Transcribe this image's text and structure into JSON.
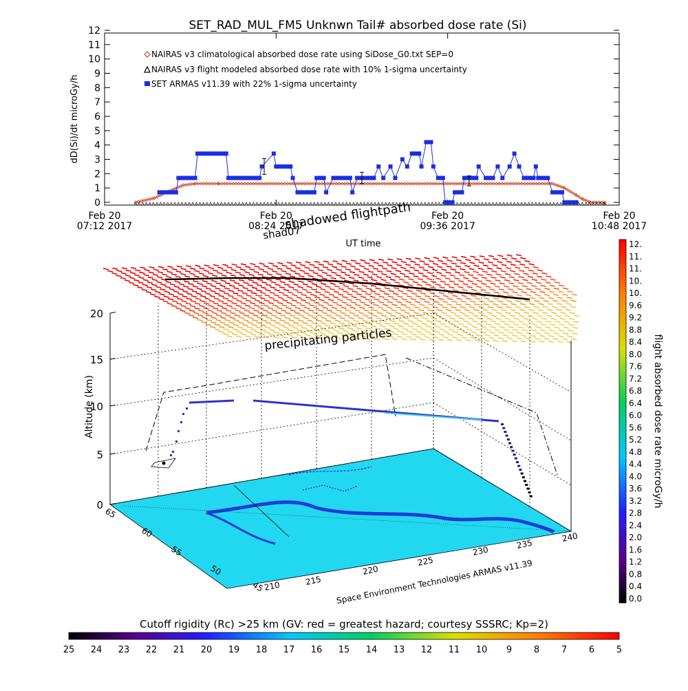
{
  "top_chart": {
    "title": "SET_RAD_MUL_FM5 Unknwn Tail#  absorbed dose rate (Si)",
    "ylabel": "dD(Si)/dt microGy/h",
    "xlabel": "UT time",
    "x_ticks": [
      {
        "l1": "Feb 20",
        "l2": "07:12 2017"
      },
      {
        "l1": "Feb 20",
        "l2": "08:24 2017"
      },
      {
        "l1": "Feb 20",
        "l2": "09:36 2017"
      },
      {
        "l1": "Feb 20",
        "l2": "10:48 2017"
      }
    ],
    "legend": [
      "NAIRAS v3 climatological absorbed dose rate using SiDose_G0.txt SEP=0",
      "NAIRAS v3 flight modeled absorbed dose rate with 10% 1-sigma uncertainty",
      "SET ARMAS v11.39 with 22% 1-sigma uncertainty"
    ],
    "colors": {
      "nairas_clim": "#c84a2a",
      "nairas_flight": "#000000",
      "armas": "#1a2fe0"
    }
  },
  "chart_data": {
    "type": "line",
    "title": "SET_RAD_MUL_FM5 Unknwn Tail#  absorbed dose rate (Si)",
    "xlabel": "UT time",
    "ylabel": "dD(Si)/dt microGy/h",
    "x_unit": "UT time (Feb 20 2017)",
    "xlim": [
      "07:12",
      "10:48"
    ],
    "ylim": [
      0,
      12
    ],
    "y_ticks": [
      0,
      1,
      2,
      3,
      4,
      5,
      6,
      7,
      8,
      9,
      10,
      11,
      12
    ],
    "series": [
      {
        "name": "NAIRAS v3 climatological absorbed dose rate using SiDose_G0.txt SEP=0",
        "points": [
          [
            "07:25",
            0.0
          ],
          [
            "07:33",
            0.3
          ],
          [
            "07:38",
            0.7
          ],
          [
            "07:45",
            1.2
          ],
          [
            "07:50",
            1.3
          ],
          [
            "08:00",
            1.3
          ],
          [
            "09:00",
            1.3
          ],
          [
            "09:30",
            1.3
          ],
          [
            "10:00",
            1.3
          ],
          [
            "10:20",
            1.3
          ],
          [
            "10:25",
            1.0
          ],
          [
            "10:30",
            0.5
          ],
          [
            "10:33",
            0.2
          ],
          [
            "10:36",
            0.0
          ],
          [
            "10:42",
            0.0
          ]
        ]
      },
      {
        "name": "NAIRAS v3 flight modeled absorbed dose rate with 10% 1-sigma uncertainty",
        "points": [
          [
            "07:25",
            0.0
          ],
          [
            "10:42",
            0.0
          ]
        ]
      },
      {
        "name": "SET ARMAS v11.39 with 22% 1-sigma uncertainty",
        "points": [
          [
            "07:35",
            0.7
          ],
          [
            "07:42",
            0.7
          ],
          [
            "07:43",
            1.7
          ],
          [
            "07:50",
            1.7
          ],
          [
            "07:51",
            3.4
          ],
          [
            "08:03",
            3.4
          ],
          [
            "08:04",
            1.7
          ],
          [
            "08:17",
            1.7
          ],
          [
            "08:18",
            2.5
          ],
          [
            "08:23",
            3.4
          ],
          [
            "08:24",
            2.5
          ],
          [
            "08:30",
            2.5
          ],
          [
            "08:31",
            1.7
          ],
          [
            "08:33",
            0.7
          ],
          [
            "08:40",
            0.7
          ],
          [
            "08:41",
            1.7
          ],
          [
            "08:44",
            1.7
          ],
          [
            "08:45",
            0.7
          ],
          [
            "08:48",
            1.7
          ],
          [
            "08:55",
            1.7
          ],
          [
            "08:56",
            0.7
          ],
          [
            "08:58",
            1.7
          ],
          [
            "09:05",
            1.7
          ],
          [
            "09:07",
            2.5
          ],
          [
            "09:09",
            1.7
          ],
          [
            "09:12",
            2.5
          ],
          [
            "09:14",
            1.7
          ],
          [
            "09:17",
            3.0
          ],
          [
            "09:19",
            2.5
          ],
          [
            "09:21",
            3.4
          ],
          [
            "09:24",
            3.4
          ],
          [
            "09:25",
            2.5
          ],
          [
            "09:27",
            4.2
          ],
          [
            "09:29",
            4.2
          ],
          [
            "09:30",
            2.5
          ],
          [
            "09:32",
            1.7
          ],
          [
            "09:34",
            1.7
          ],
          [
            "09:35",
            0.0
          ],
          [
            "09:38",
            0.0
          ],
          [
            "09:39",
            0.7
          ],
          [
            "09:42",
            0.7
          ],
          [
            "09:43",
            1.7
          ],
          [
            "09:48",
            1.7
          ],
          [
            "09:49",
            2.5
          ],
          [
            "09:52",
            1.7
          ],
          [
            "09:55",
            1.7
          ],
          [
            "09:57",
            2.5
          ],
          [
            "09:59",
            1.7
          ],
          [
            "10:02",
            2.5
          ],
          [
            "10:04",
            3.4
          ],
          [
            "10:06",
            2.5
          ],
          [
            "10:08",
            1.7
          ],
          [
            "10:12",
            1.7
          ],
          [
            "10:13",
            2.5
          ],
          [
            "10:14",
            1.7
          ],
          [
            "10:18",
            1.7
          ],
          [
            "10:20",
            0.7
          ],
          [
            "10:24",
            0.7
          ],
          [
            "10:25",
            0.0
          ],
          [
            "10:30",
            0.0
          ]
        ]
      }
    ]
  },
  "globe_labels": {
    "altitude_label": "Altitude (km)",
    "altitude_ticks": [
      "0",
      "5",
      "10",
      "15",
      "20"
    ],
    "precip_label": "precipitating particles",
    "flightpath_label": "shadowed flightpath",
    "flightpath_note": "shad07",
    "lon_ticks": [
      "210",
      "215",
      "220",
      "225",
      "230",
      "235",
      "240"
    ],
    "lat_ticks": [
      "45",
      "50",
      "55",
      "60",
      "65"
    ],
    "credit": "Space Environment Technologies ARMAS v11.39"
  },
  "dose_colorbar": {
    "label": "flight absorbed dose rate microGy/h",
    "ticks": [
      "12.",
      "11.",
      "11.",
      "10.",
      "10.",
      "9.6",
      "9.2",
      "8.8",
      "8.4",
      "8.0",
      "7.6",
      "7.2",
      "6.8",
      "6.4",
      "6.0",
      "5.6",
      "5.2",
      "4.8",
      "4.4",
      "4.0",
      "3.6",
      "3.2",
      "2.8",
      "2.4",
      "2.0",
      "1.6",
      "1.2",
      "0.8",
      "0.4",
      "0.0"
    ]
  },
  "rc_colorbar": {
    "title": "Cutoff rigidity (Rc) >25 km (GV: red = greatest hazard; courtesy SSSRC; Kp=2)",
    "ticks": [
      "25",
      "24",
      "23",
      "22",
      "21",
      "20",
      "19",
      "18",
      "17",
      "16",
      "15",
      "14",
      "13",
      "12",
      "11",
      "10",
      "9",
      "8",
      "7",
      "6",
      "5"
    ]
  }
}
